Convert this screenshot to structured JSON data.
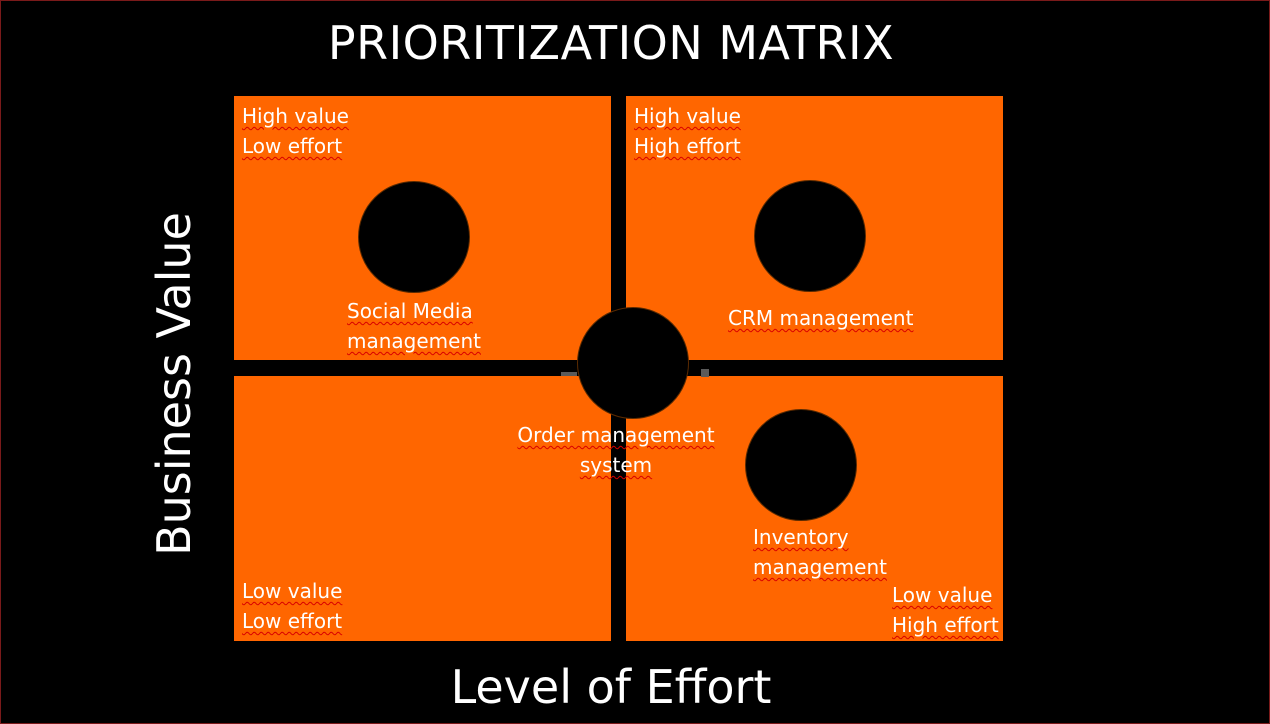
{
  "title": "PRIORITIZATION MATRIX",
  "axes": {
    "y_label": "Business Value",
    "x_label": "Level of Effort"
  },
  "quadrants": [
    {
      "id": "top-left",
      "line1": "High value",
      "line2": "Low effort"
    },
    {
      "id": "top-right",
      "line1": "High value",
      "line2": "High effort"
    },
    {
      "id": "bottom-left",
      "line1": "Low value",
      "line2": "Low effort"
    },
    {
      "id": "bottom-right",
      "line1": "Low value",
      "line2": "High effort"
    }
  ],
  "items": [
    {
      "id": "social",
      "line1": "Social Media",
      "line2": "management"
    },
    {
      "id": "crm",
      "line1": "CRM management",
      "line2": ""
    },
    {
      "id": "order",
      "line1": "Order management",
      "line2": "system"
    },
    {
      "id": "inventory",
      "line1": "Inventory",
      "line2": "management"
    }
  ],
  "colors": {
    "background": "#000000",
    "quadrant_fill": "#ff6600",
    "marker_fill": "#000000",
    "text": "#ffffff",
    "spellcheck_underline": "#d80000"
  }
}
